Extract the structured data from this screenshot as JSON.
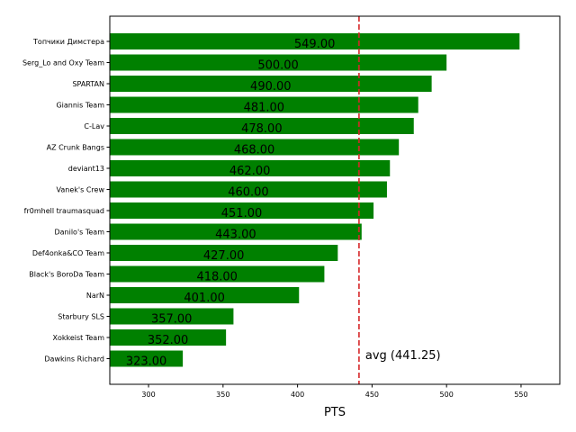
{
  "chart_data": {
    "type": "bar",
    "orientation": "horizontal",
    "categories": [
      "Топчики Димстера",
      "Serg_Lo and Oxy Team",
      "SPARTAN",
      "Giannis Team",
      "C-Lav",
      "AZ Crunk Bangs",
      "deviant13",
      "Vanek's Crew",
      "fr0mhell traumasquad",
      "Danilo's Team",
      "Def4onka&CO Team",
      "Black's BoroDa Team",
      "NarN",
      "Starbury SLS",
      "Xokkeist Team",
      "Dawkins Richard"
    ],
    "values": [
      549,
      500,
      490,
      481,
      478,
      468,
      462,
      460,
      451,
      443,
      427,
      418,
      401,
      357,
      352,
      323
    ],
    "value_labels": [
      "549.00",
      "500.00",
      "490.00",
      "481.00",
      "478.00",
      "468.00",
      "462.00",
      "460.00",
      "451.00",
      "443.00",
      "427.00",
      "418.00",
      "401.00",
      "357.00",
      "352.00",
      "323.00"
    ],
    "bar_color": "#008000",
    "xlabel": "PTS",
    "xlim": [
      274,
      576
    ],
    "xticks": [
      300,
      350,
      400,
      450,
      500,
      550
    ],
    "average": {
      "value": 441.25,
      "label": "avg (441.25)",
      "color": "#d62728"
    },
    "grid": false
  }
}
